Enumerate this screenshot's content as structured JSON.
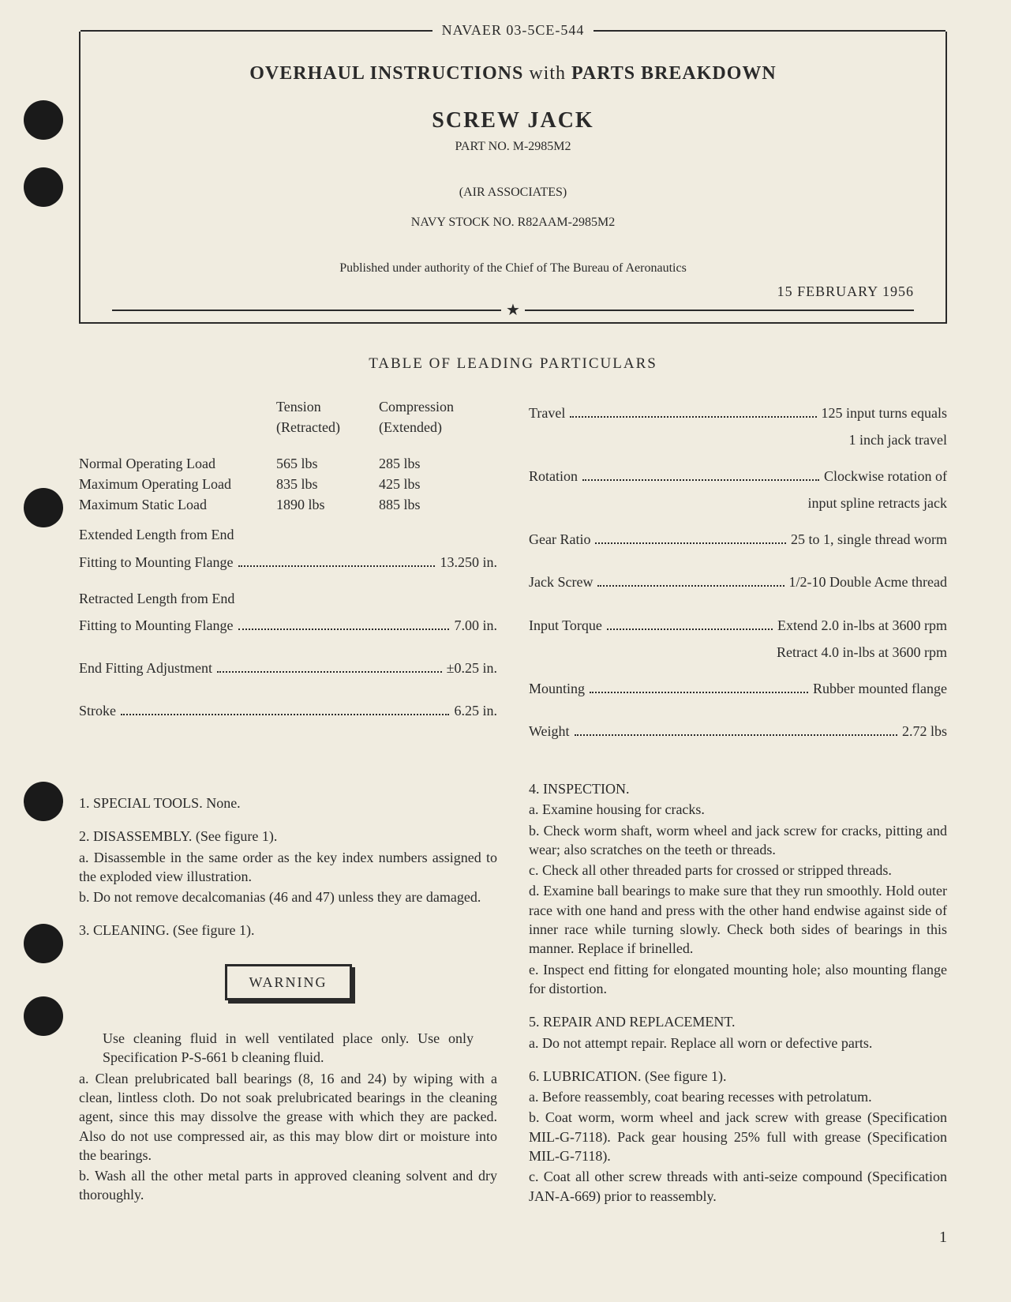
{
  "nav": "NAVAER 03-5CE-544",
  "title": {
    "pre": "OVERHAUL INSTRUCTIONS",
    "with": "with",
    "post": "PARTS BREAKDOWN"
  },
  "subtitle": "SCREW JACK",
  "part_no": "PART NO. M-2985M2",
  "associates": "(AIR ASSOCIATES)",
  "stock": "NAVY STOCK NO. R82AAM-2985M2",
  "authority": "Published under authority of the Chief of The Bureau of Aeronautics",
  "date": "15 FEBRUARY 1956",
  "table_title": "TABLE OF LEADING PARTICULARS",
  "col_headers": {
    "tension": "Tension",
    "tension_sub": "(Retracted)",
    "compression": "Compression",
    "compression_sub": "(Extended)"
  },
  "loads": {
    "normal": {
      "label": "Normal Operating Load",
      "t": "565 lbs",
      "c": "285 lbs"
    },
    "max_op": {
      "label": "Maximum Operating Load",
      "t": "835 lbs",
      "c": "425 lbs"
    },
    "max_st": {
      "label": "Maximum Static Load",
      "t": "1890 lbs",
      "c": "885 lbs"
    }
  },
  "left_specs": {
    "ext_len_l1": "Extended Length from End",
    "ext_len_l2": "Fitting to Mounting Flange",
    "ext_len_v": "13.250 in.",
    "ret_len_l1": "Retracted Length from End",
    "ret_len_l2": "Fitting to Mounting Flange",
    "ret_len_v": "7.00 in.",
    "end_fit_l": "End Fitting Adjustment",
    "end_fit_v": "±0.25 in.",
    "stroke_l": "Stroke",
    "stroke_v": "6.25 in."
  },
  "right_specs": {
    "travel_l": "Travel",
    "travel_v": "125 input turns equals",
    "travel_v2": "1 inch jack travel",
    "rotation_l": "Rotation",
    "rotation_v": "Clockwise rotation of",
    "rotation_v2": "input spline retracts jack",
    "gear_l": "Gear Ratio",
    "gear_v": "25 to 1, single thread worm",
    "jack_l": "Jack Screw",
    "jack_v": "1/2-10 Double Acme thread",
    "torque_l": "Input Torque",
    "torque_v": "Extend 2.0 in-lbs at 3600 rpm",
    "torque_v2": "Retract 4.0 in-lbs at 3600 rpm",
    "mount_l": "Mounting",
    "mount_v": "Rubber mounted flange",
    "weight_l": "Weight",
    "weight_v": "2.72 lbs"
  },
  "body_left": {
    "s1": "1. SPECIAL TOOLS. None.",
    "s2": "2. DISASSEMBLY. (See figure 1).",
    "s2a": "a. Disassemble in the same order as the key index numbers assigned to the exploded view illustration.",
    "s2b": "b. Do not remove decalcomanias (46 and 47) unless they are damaged.",
    "s3": "3. CLEANING. (See figure 1).",
    "warning": "WARNING",
    "warn_text": "Use cleaning fluid in well ventilated place only. Use only Specification P-S-661 b cleaning fluid.",
    "s3a": "a. Clean prelubricated ball bearings (8, 16 and 24) by wiping with a clean, lintless cloth. Do not soak prelubricated bearings in the cleaning agent, since this may dissolve the grease with which they are packed. Also do not use compressed air, as this may blow dirt or moisture into the bearings.",
    "s3b": "b. Wash all the other metal parts in approved cleaning solvent and dry thoroughly."
  },
  "body_right": {
    "s4": "4. INSPECTION.",
    "s4a": "a. Examine housing for cracks.",
    "s4b": "b. Check worm shaft, worm wheel and jack screw for cracks, pitting and wear; also scratches on the teeth or threads.",
    "s4c": "c. Check all other threaded parts for crossed or stripped threads.",
    "s4d": "d. Examine ball bearings to make sure that they run smoothly. Hold outer race with one hand and press with the other hand endwise against side of inner race while turning slowly. Check both sides of bearings in this manner. Replace if brinelled.",
    "s4e": "e. Inspect end fitting for elongated mounting hole; also mounting flange for distortion.",
    "s5": "5. REPAIR AND REPLACEMENT.",
    "s5a": "a. Do not attempt repair. Replace all worn or defective parts.",
    "s6": "6. LUBRICATION. (See figure 1).",
    "s6a": "a. Before reassembly, coat bearing recesses with petrolatum.",
    "s6b": "b. Coat worm, worm wheel and jack screw with grease (Specification MIL-G-7118). Pack gear housing 25% full with grease (Specification MIL-G-7118).",
    "s6c": "c. Coat all other screw threads with anti-seize compound (Specification JAN-A-669) prior to reassembly."
  },
  "page_num": "1"
}
